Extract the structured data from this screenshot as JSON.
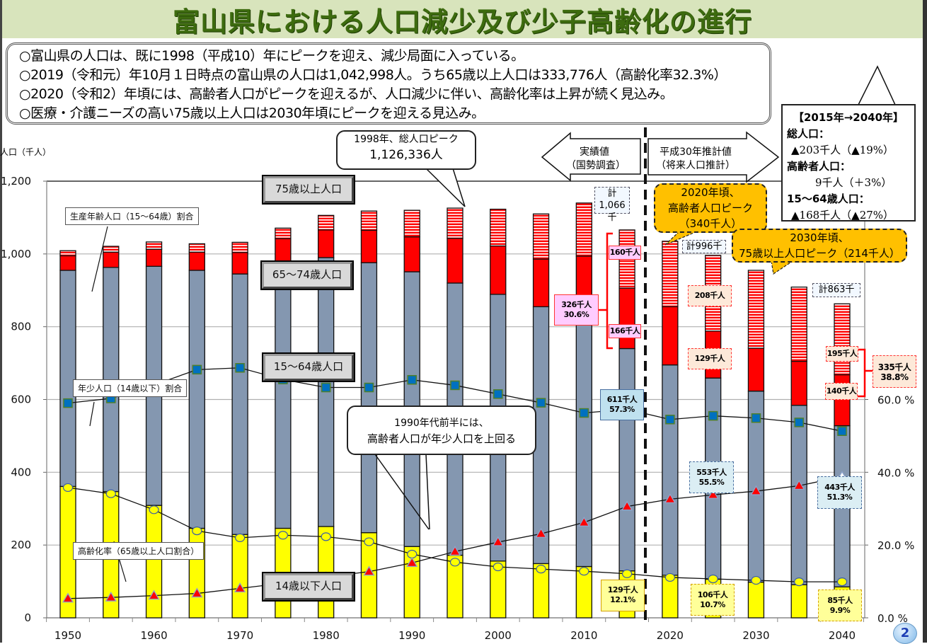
{
  "title": "富山県における人口減少及び少子高齢化の進行",
  "summary": [
    "○富山県の人口は、既に1998（平成10）年にピークを迎え、減少局面に入っている。",
    "○2019（令和元）年10月１日時点の富山県の人口は1,042,998人。うち65歳以上人口は333,776人（高齢化率32.3%）",
    "○2020（令和2）年頃には、高齢者人口がピークを迎えるが、人口減少に伴い、高齢化率は上昇が続く見込み。",
    "○医療・介護ニーズの高い75歳以上人口は2030年頃にピークを迎える見込み。"
  ],
  "stat_box": {
    "header": "【2015年→2040年】",
    "total_label": "総人口：",
    "total_value": "▲203千人（▲19%）",
    "elderly_label": "高齢者人口：",
    "elderly_value": "9千人（＋3%）",
    "working_label": "15〜64歳人口：",
    "working_value": "▲168千人（▲27%）"
  },
  "axis": {
    "y_left_unit": "人口（千人）",
    "y_left_ticks": [
      "0",
      "200",
      "400",
      "600",
      "800",
      "1,000",
      "1,200"
    ],
    "y_right_ticks": [
      "0.0 %",
      "20.0 %",
      "40.0 %",
      "60.0 %"
    ],
    "x_ticks": [
      "1950",
      "1960",
      "1970",
      "1980",
      "1990",
      "2000",
      "2010",
      "2020",
      "2030",
      "2040"
    ]
  },
  "segment_labels": {
    "age75": "75歳以上人口",
    "age65_74": "65〜74歳人口",
    "age15_64": "15〜64歳人口",
    "age0_14": "14歳以下人口"
  },
  "line_labels": {
    "working_ratio": "生産年齢人口（15〜64歳）割合",
    "child_ratio": "年少人口（14歳以下）割合",
    "aging_ratio": "高齢化率（65歳以上人口割合）"
  },
  "callouts": {
    "peak_line1": "1998年、総人口ピーク",
    "peak_line2": "1,126,336人",
    "cross_line1": "1990年代前半には、",
    "cross_line2": "高齢者人口が年少人口を上回る",
    "elderly_peak_line1": "2020年頃、",
    "elderly_peak_line2": "高齢者人口ピーク",
    "elderly_peak_line3": "（340千人）",
    "old75_peak_line1": "2030年頃、",
    "old75_peak_line2": "75歳以上人口ピーク（214千人）"
  },
  "arrows": {
    "actual_line1": "実績値",
    "actual_line2": "（国勢調査）",
    "forecast_line1": "平成30年推計値",
    "forecast_line2": "（将来人口推計）"
  },
  "totals": {
    "t2015_line1": "計",
    "t2015_line2": "1,066千",
    "t2025": "計996千",
    "t2040": "計863千"
  },
  "value_labels": {
    "v2015_75": "160千人",
    "v2015_65": "166千人",
    "v2015_elderly_line1": "326千人",
    "v2015_elderly_line2": "30.6%",
    "v2015_working_line1": "611千人",
    "v2015_working_line2": "57.3%",
    "v2015_child_line1": "129千人",
    "v2015_child_line2": "12.1%",
    "v2025_75": "208千人",
    "v2025_65": "129千人",
    "v2025_working_line1": "553千人",
    "v2025_working_line2": "55.5%",
    "v2025_child_line1": "106千人",
    "v2025_child_line2": "10.7%",
    "v2040_75": "195千人",
    "v2040_65": "140千人",
    "v2040_elderly_line1": "335千人",
    "v2040_elderly_line2": "38.8%",
    "v2040_working_line1": "443千人",
    "v2040_working_line2": "51.3%",
    "v2040_child_line1": "85千人",
    "v2040_child_line2": "9.9%"
  },
  "page_number": "2",
  "colors": {
    "age0_14": "#ffff00",
    "age15_64": "#8497b0",
    "age65_74": "#ff0000",
    "age75": "#ff0000",
    "title_bg": "#d8e4bc",
    "title_text": "#3d6b0f",
    "callout_orange": "#ffc000"
  },
  "chart_data": {
    "type": "bar",
    "title": "富山県における人口減少及び少子高齢化の進行",
    "stacked": true,
    "xlabel": "",
    "ylabel": "人口（千人）",
    "ylim": [
      0,
      1200
    ],
    "y2label": "%",
    "y2lim": [
      0,
      120
    ],
    "categories": [
      "1950",
      "1955",
      "1960",
      "1965",
      "1970",
      "1975",
      "1980",
      "1985",
      "1990",
      "1995",
      "2000",
      "2005",
      "2010",
      "2015",
      "2020",
      "2025",
      "2030",
      "2035",
      "2040"
    ],
    "series": [
      {
        "name": "14歳以下人口",
        "type": "bar",
        "values": [
          361,
          347,
          309,
          246,
          229,
          246,
          251,
          234,
          196,
          172,
          156,
          149,
          141,
          129,
          117,
          106,
          98,
          91,
          85
        ]
      },
      {
        "name": "15〜64歳人口",
        "type": "bar",
        "values": [
          594,
          616,
          657,
          709,
          716,
          724,
          739,
          742,
          755,
          748,
          733,
          706,
          712,
          611,
          578,
          553,
          525,
          493,
          443
        ]
      },
      {
        "name": "65〜74歳人口",
        "type": "bar",
        "values": [
          40,
          42,
          47,
          50,
          59,
          72,
          76,
          89,
          96,
          123,
          133,
          131,
          141,
          166,
          160,
          129,
          118,
          121,
          140
        ]
      },
      {
        "name": "75歳以上人口",
        "type": "bar",
        "values": [
          14,
          16,
          20,
          23,
          28,
          29,
          40,
          53,
          73,
          83,
          101,
          124,
          146,
          160,
          180,
          208,
          214,
          204,
          195
        ]
      },
      {
        "name": "生産年齢人口（15〜64歳）割合",
        "type": "line",
        "axis": "right",
        "values": [
          59.0,
          60.3,
          64.0,
          68.2,
          68.7,
          65.5,
          63.3,
          63.3,
          65.4,
          63.9,
          61.5,
          59.1,
          56.3,
          57.3,
          54.5,
          55.5,
          54.9,
          53.7,
          51.3
        ]
      },
      {
        "name": "年少人口（14歳以下）割合",
        "type": "line",
        "axis": "right",
        "values": [
          35.8,
          34.1,
          29.7,
          23.9,
          22.0,
          22.7,
          22.3,
          20.9,
          17.5,
          15.3,
          14.0,
          13.4,
          12.8,
          12.1,
          11.1,
          10.7,
          10.3,
          9.9,
          9.9
        ]
      },
      {
        "name": "高齢化率（65歳以上人口割合）",
        "type": "line",
        "axis": "right",
        "values": [
          5.3,
          5.6,
          6.1,
          6.7,
          8.1,
          9.5,
          11.2,
          12.7,
          15.1,
          18.2,
          20.8,
          23.1,
          26.2,
          30.6,
          32.6,
          33.8,
          34.8,
          36.3,
          38.8
        ]
      }
    ],
    "legend": "inline labels",
    "grid": true,
    "divider_between": [
      "2015",
      "2020"
    ]
  }
}
